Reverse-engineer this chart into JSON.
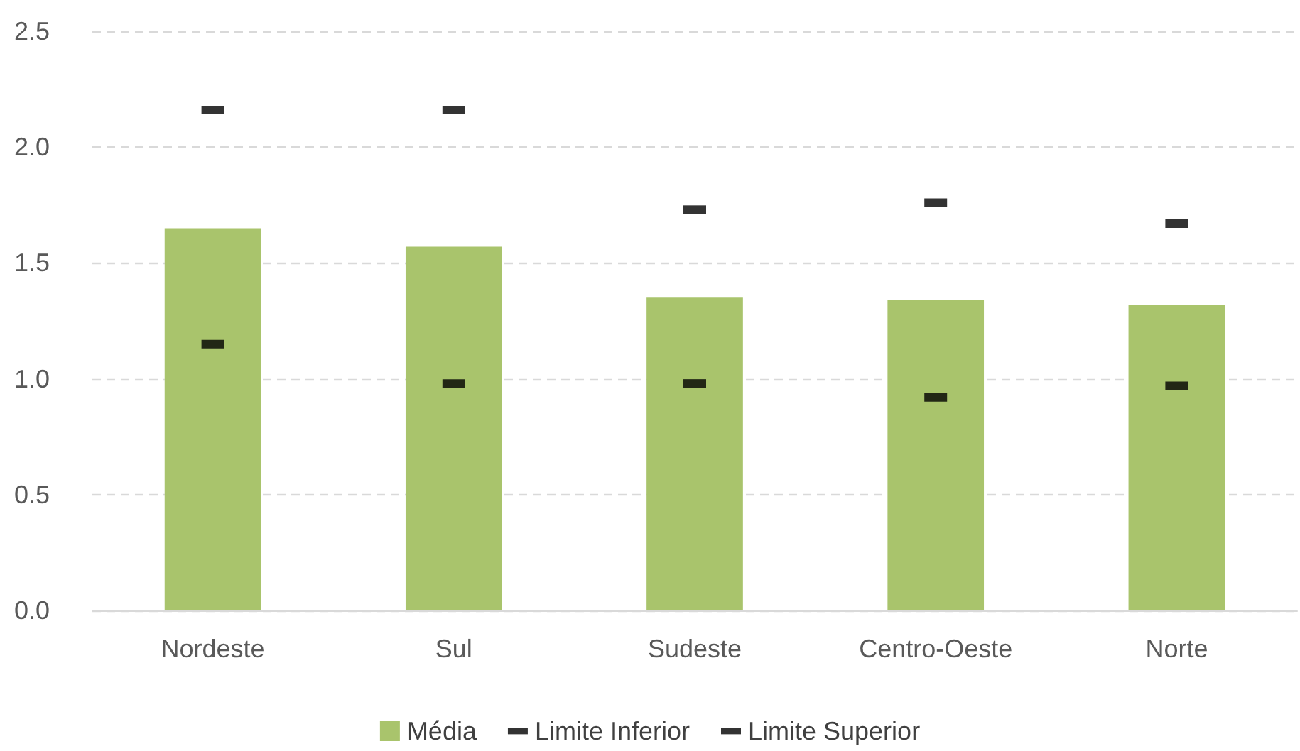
{
  "chart_data": {
    "type": "bar",
    "categories": [
      "Nordeste",
      "Sul",
      "Sudeste",
      "Centro-Oeste",
      "Norte"
    ],
    "series": [
      {
        "name": "Média",
        "type": "bar",
        "color": "#a9c46c",
        "values": [
          1.65,
          1.57,
          1.35,
          1.34,
          1.32
        ]
      },
      {
        "name": "Limite Inferior",
        "type": "scatter",
        "color": "#000000",
        "values": [
          1.15,
          0.98,
          0.98,
          0.92,
          0.97
        ]
      },
      {
        "name": "Limite Superior",
        "type": "scatter",
        "color": "#000000",
        "values": [
          2.16,
          2.16,
          1.73,
          1.76,
          1.67
        ]
      }
    ],
    "ylim": [
      0,
      2.5
    ],
    "yticks": [
      {
        "value": 0,
        "label": "0.0"
      },
      {
        "value": 0.5,
        "label": "0.5"
      },
      {
        "value": 1,
        "label": "1.0"
      },
      {
        "value": 1.5,
        "label": "1.5"
      },
      {
        "value": 2,
        "label": "2.0"
      },
      {
        "value": 2.5,
        "label": "2.5"
      }
    ],
    "grid": "y",
    "legend": "bottom",
    "marker": "square"
  }
}
